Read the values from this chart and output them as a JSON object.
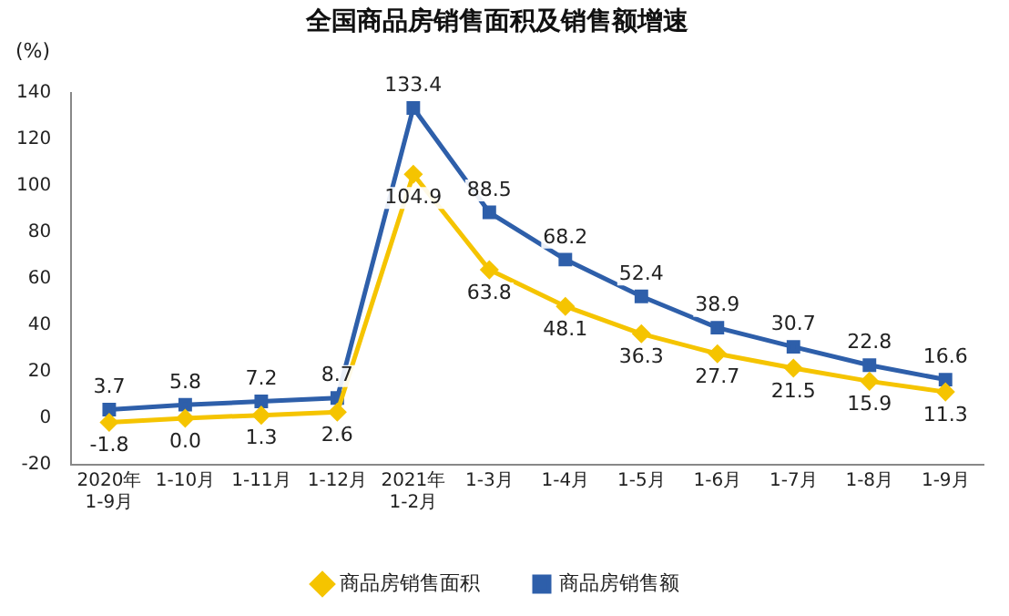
{
  "chart_data": {
    "type": "line",
    "title": "全国商品房销售面积及销售额增速",
    "ylabel": "(%)",
    "categories": [
      "2020年\n1-9月",
      "1-10月",
      "1-11月",
      "1-12月",
      "2021年\n1-2月",
      "1-3月",
      "1-4月",
      "1-5月",
      "1-6月",
      "1-7月",
      "1-8月",
      "1-9月"
    ],
    "series": [
      {
        "name": "商品房销售面积",
        "color": "#f5c400",
        "marker": "diamond",
        "values": [
          -1.8,
          0.0,
          1.3,
          2.6,
          104.9,
          63.8,
          48.1,
          36.3,
          27.7,
          21.5,
          15.9,
          11.3
        ],
        "value_labels": [
          "-1.8",
          "0.0",
          "1.3",
          "2.6",
          "104.9",
          "63.8",
          "48.1",
          "36.3",
          "27.7",
          "21.5",
          "15.9",
          "11.3"
        ]
      },
      {
        "name": "商品房销售额",
        "color": "#2e5faa",
        "marker": "square",
        "values": [
          3.7,
          5.8,
          7.2,
          8.7,
          133.4,
          88.5,
          68.2,
          52.4,
          38.9,
          30.7,
          22.8,
          16.6
        ],
        "value_labels": [
          "3.7",
          "5.8",
          "7.2",
          "8.7",
          "133.4",
          "88.5",
          "68.2",
          "52.4",
          "38.9",
          "30.7",
          "22.8",
          "16.6"
        ]
      }
    ],
    "ylim": [
      -20,
      140
    ],
    "yticks": [
      -20,
      0,
      20,
      40,
      60,
      80,
      100,
      120,
      140
    ],
    "grid": false,
    "legend": "bottom",
    "line_style": "solid"
  }
}
